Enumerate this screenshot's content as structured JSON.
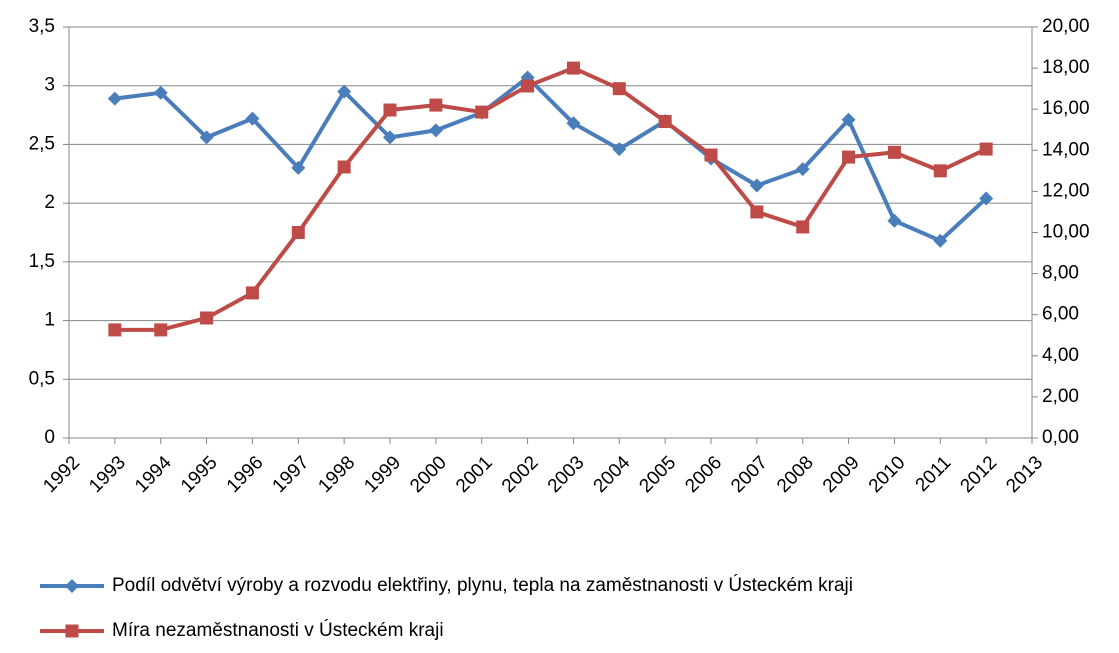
{
  "chart_data": {
    "type": "line",
    "x": [
      1993,
      1994,
      1995,
      1996,
      1997,
      1998,
      1999,
      2000,
      2001,
      2002,
      2003,
      2004,
      2005,
      2006,
      2007,
      2008,
      2009,
      2010,
      2011,
      2012
    ],
    "series": [
      {
        "name": "Podíl odvětví výroby a rozvodu elektřiny, plynu, tepla na zaměstnanosti v Ústeckém kraji",
        "color": "#4a7ebb",
        "marker": "diamond",
        "values": [
          2.89,
          2.94,
          2.56,
          2.72,
          2.3,
          2.95,
          2.56,
          2.62,
          2.77,
          3.07,
          2.68,
          2.46,
          2.7,
          2.38,
          2.15,
          2.29,
          2.71,
          1.85,
          1.68,
          2.04
        ]
      },
      {
        "name": "Míra nezaměstnanosti v Ústeckém kraji",
        "color": "#be4b48",
        "marker": "square",
        "axis": "y2",
        "values": [
          5.26,
          5.26,
          5.84,
          7.06,
          10.0,
          13.19,
          15.96,
          16.2,
          15.86,
          17.13,
          18.0,
          17.0,
          15.4,
          13.77,
          11.0,
          10.27,
          13.67,
          13.9,
          13.0,
          14.06
        ]
      }
    ],
    "xlim": [
      1992,
      2013
    ],
    "xticks": [
      1992,
      1993,
      1994,
      1995,
      1996,
      1997,
      1998,
      1999,
      2000,
      2001,
      2002,
      2003,
      2004,
      2005,
      2006,
      2007,
      2008,
      2009,
      2010,
      2011,
      2012,
      2013
    ],
    "ylim": [
      0,
      3.5
    ],
    "yticks": [
      0,
      {
        "value": 0.5,
        "label": "0,5"
      },
      1,
      {
        "value": 1.5,
        "label": "1,5"
      },
      2,
      {
        "value": 2.5,
        "label": "2,5"
      },
      3,
      {
        "value": 3.5,
        "label": "3,5"
      }
    ],
    "y2lim": [
      0,
      20
    ],
    "y2ticks": [
      {
        "value": 0,
        "label": "0,00"
      },
      {
        "value": 2,
        "label": "2,00"
      },
      {
        "value": 4,
        "label": "4,00"
      },
      {
        "value": 6,
        "label": "6,00"
      },
      {
        "value": 8,
        "label": "8,00"
      },
      {
        "value": 10,
        "label": "10,00"
      },
      {
        "value": 12,
        "label": "12,00"
      },
      {
        "value": 14,
        "label": "14,00"
      },
      {
        "value": 16,
        "label": "16,00"
      },
      {
        "value": 18,
        "label": "18,00"
      },
      {
        "value": 20,
        "label": "20,00"
      }
    ],
    "grid": true,
    "legend": "bottom"
  }
}
